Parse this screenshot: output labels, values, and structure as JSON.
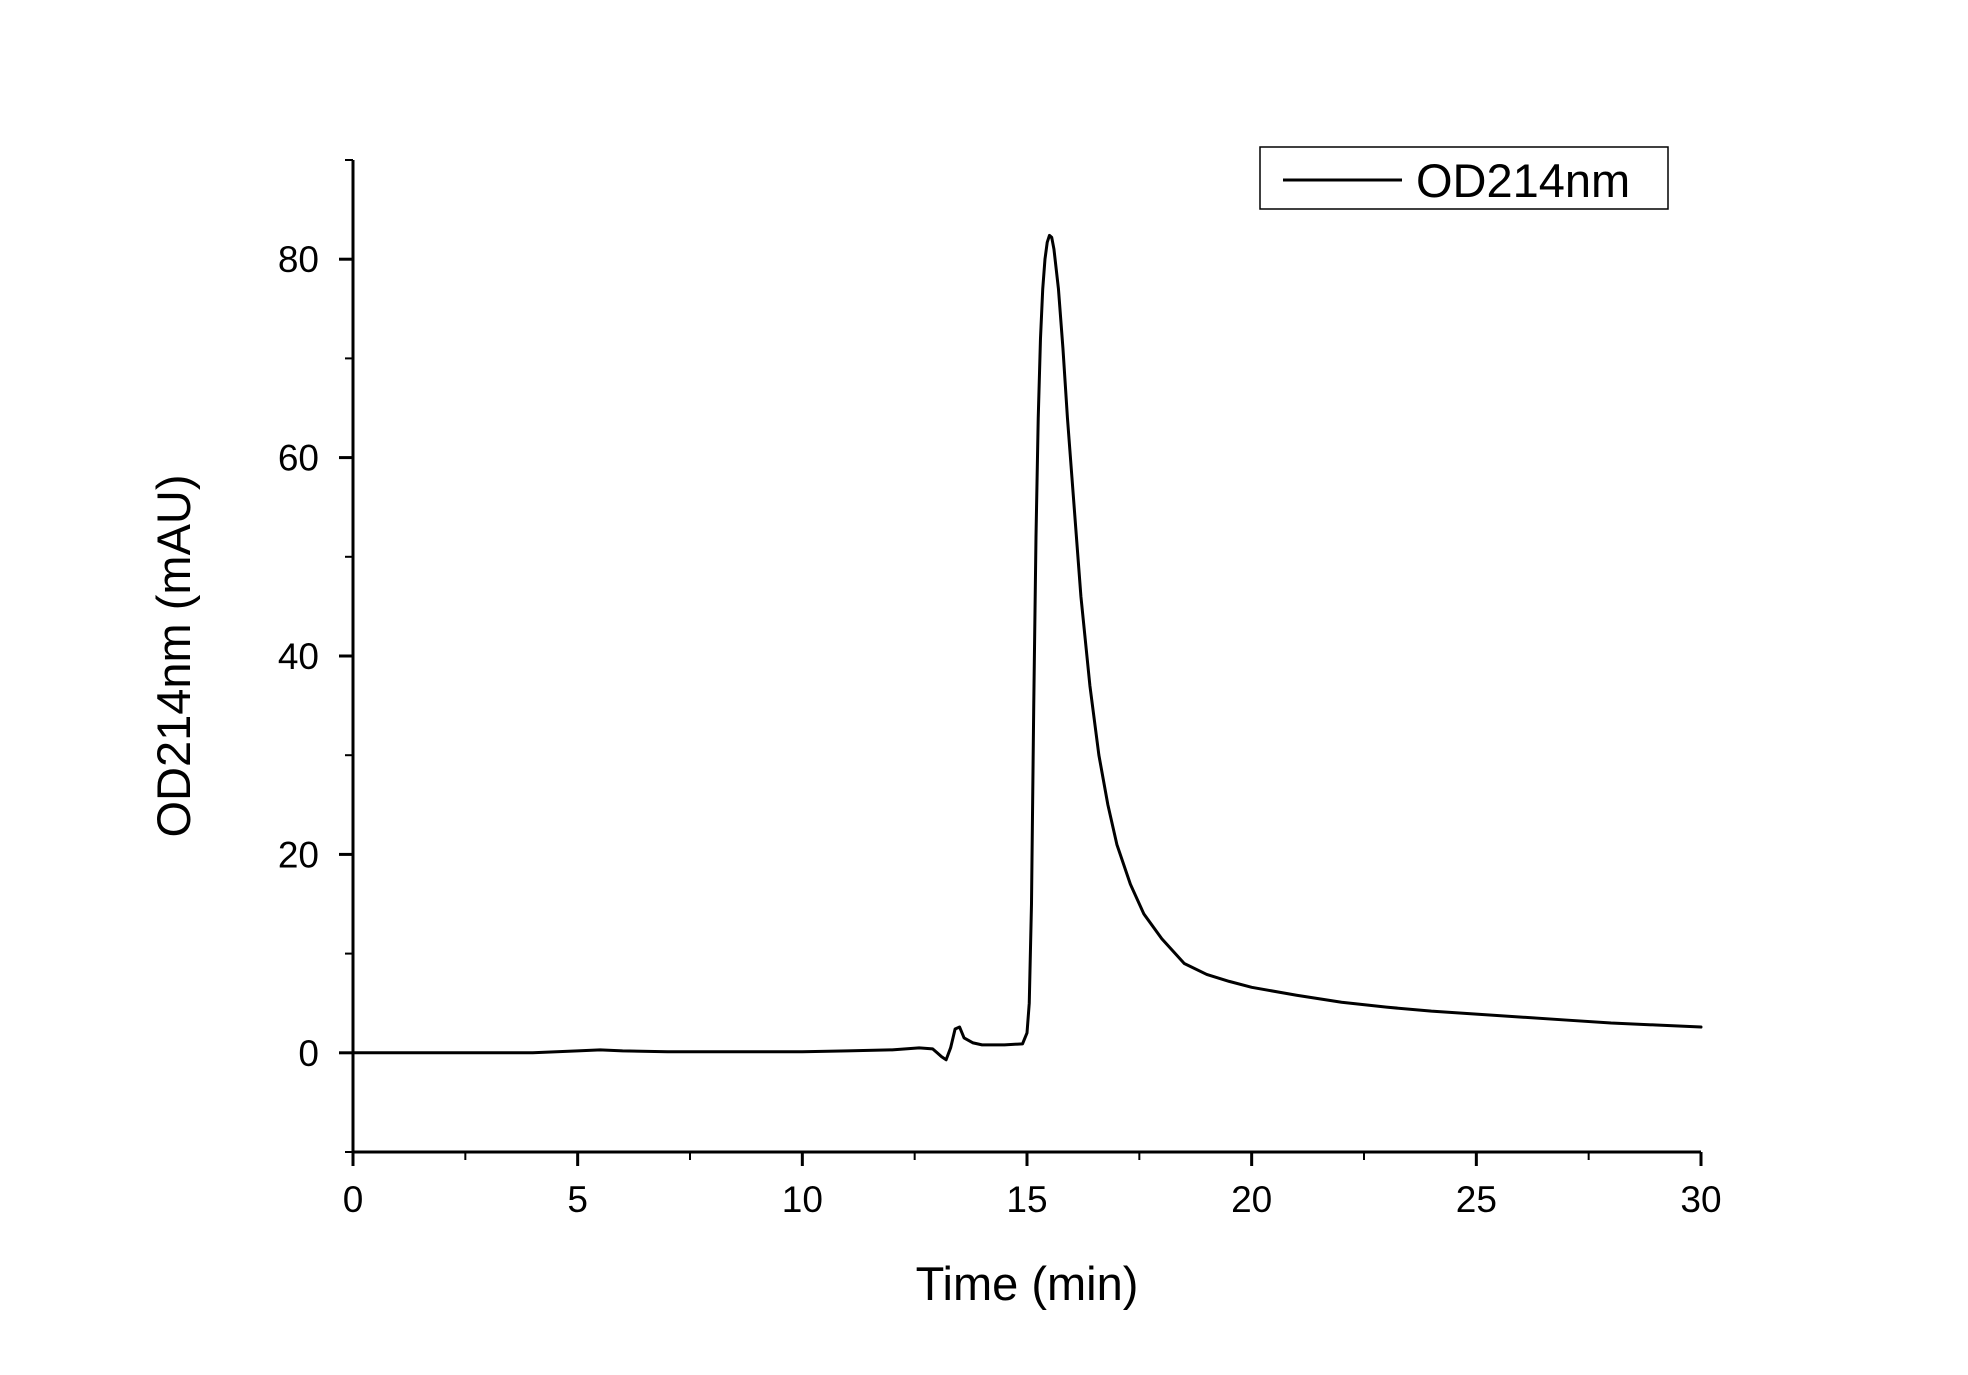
{
  "chart_data": {
    "type": "line",
    "title": "",
    "xlabel": "Time (min)",
    "ylabel": "OD214nm (mAU)",
    "xlim": [
      0,
      30
    ],
    "ylim": [
      -10,
      90
    ],
    "x_ticks": [
      0,
      5,
      10,
      15,
      20,
      25,
      30
    ],
    "x_tick_labels": [
      "0",
      "5",
      "10",
      "15",
      "20",
      "25",
      "30"
    ],
    "y_ticks": [
      0,
      20,
      40,
      60,
      80
    ],
    "y_tick_labels": [
      "0",
      "20",
      "40",
      "60",
      "80"
    ],
    "grid": false,
    "legend_position": "top-right",
    "series": [
      {
        "name": "OD214nm",
        "color": "#000000",
        "x": [
          0,
          2,
          4,
          5,
          5.5,
          6,
          7,
          8,
          9,
          10,
          11,
          12,
          12.6,
          12.9,
          13.0,
          13.1,
          13.2,
          13.3,
          13.4,
          13.5,
          13.6,
          13.8,
          14.0,
          14.5,
          14.9,
          15.0,
          15.05,
          15.1,
          15.15,
          15.2,
          15.25,
          15.3,
          15.35,
          15.4,
          15.45,
          15.5,
          15.55,
          15.6,
          15.7,
          15.8,
          15.9,
          16.0,
          16.2,
          16.4,
          16.6,
          16.8,
          17.0,
          17.3,
          17.6,
          18.0,
          18.5,
          19.0,
          19.5,
          20.0,
          21.0,
          22.0,
          23.0,
          24.0,
          25.0,
          26.0,
          27.0,
          28.0,
          29.0,
          30.0
        ],
        "y": [
          0,
          0,
          0,
          0.2,
          0.3,
          0.2,
          0.1,
          0.1,
          0.1,
          0.1,
          0.2,
          0.3,
          0.5,
          0.4,
          0,
          -0.4,
          -0.7,
          0.5,
          2.4,
          2.6,
          1.5,
          1.0,
          0.8,
          0.8,
          0.9,
          2.0,
          5.0,
          15.0,
          35.0,
          52.0,
          64.0,
          72.0,
          77.0,
          80.0,
          81.7,
          82.4,
          82.2,
          81.0,
          77.0,
          71.0,
          64.0,
          58.0,
          46.0,
          37.0,
          30.0,
          25.0,
          21.0,
          17.0,
          14.0,
          11.5,
          9.0,
          7.9,
          7.2,
          6.6,
          5.8,
          5.1,
          4.6,
          4.2,
          3.9,
          3.6,
          3.3,
          3.0,
          2.8,
          2.6
        ]
      }
    ]
  }
}
